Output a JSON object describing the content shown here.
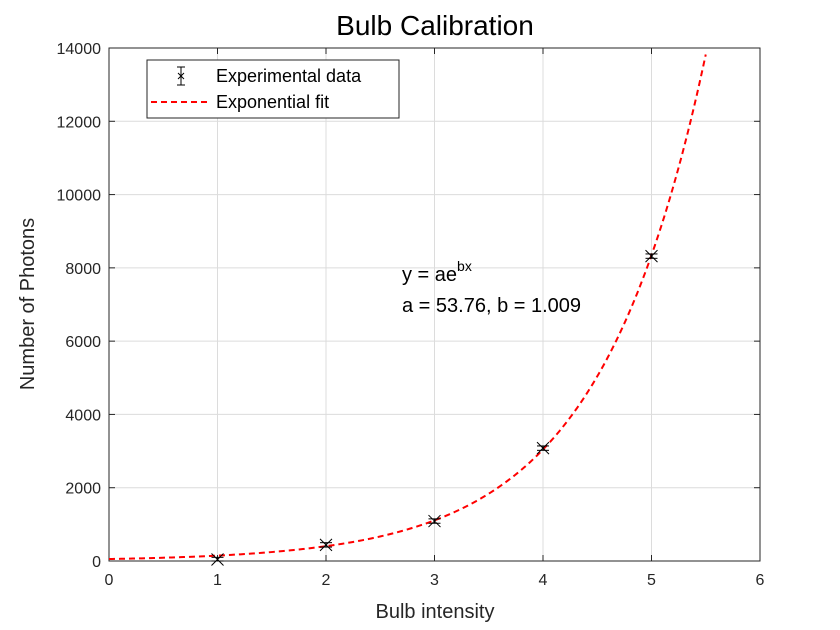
{
  "chart_data": {
    "type": "scatter",
    "title": "Bulb Calibration",
    "xlabel": "Bulb intensity",
    "ylabel": "Number of Photons",
    "xlim": [
      0,
      6
    ],
    "ylim": [
      0,
      14000
    ],
    "xticks": [
      0,
      1,
      2,
      3,
      4,
      5,
      6
    ],
    "yticks": [
      0,
      2000,
      4000,
      6000,
      8000,
      10000,
      12000,
      14000
    ],
    "grid": true,
    "legend_position": "top-left",
    "series": [
      {
        "name": "Experimental data",
        "type": "errorbar",
        "marker": "x",
        "color": "#000000",
        "x": [
          1,
          2,
          3,
          4,
          5
        ],
        "y": [
          40,
          440,
          1090,
          3080,
          8320
        ],
        "error": [
          60,
          60,
          60,
          60,
          60
        ]
      },
      {
        "name": "Exponential fit",
        "type": "line",
        "style": "dashed",
        "color": "#ff0000",
        "model": "exponential",
        "a": 53.76,
        "b": 1.009,
        "x_range": [
          0,
          5.5
        ]
      }
    ],
    "annotation": {
      "line1_base": "y = ae",
      "line1_sup": "bx",
      "line2": "a = 53.76, b = 1.009"
    }
  }
}
